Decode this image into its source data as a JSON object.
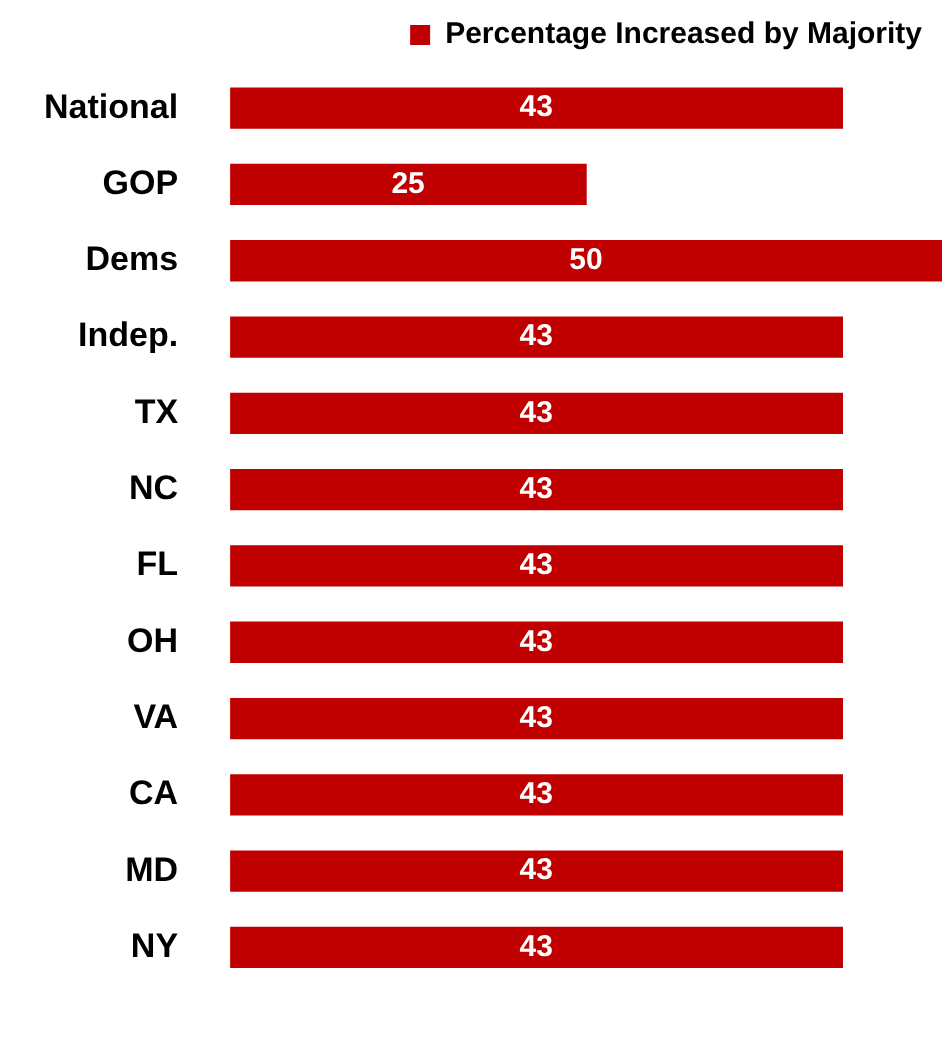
{
  "chart_data": {
    "type": "bar",
    "orientation": "horizontal",
    "categories": [
      "National",
      "GOP",
      "Dems",
      "Indep.",
      "TX",
      "NC",
      "FL",
      "OH",
      "VA",
      "CA",
      "MD",
      "NY"
    ],
    "series": [
      {
        "name": "Percentage Increased by Majority",
        "color": "#c00000",
        "values": [
          43,
          25,
          50,
          43,
          43,
          43,
          43,
          43,
          43,
          43,
          43,
          43
        ]
      }
    ],
    "data_labels": true,
    "legend": "top right"
  }
}
